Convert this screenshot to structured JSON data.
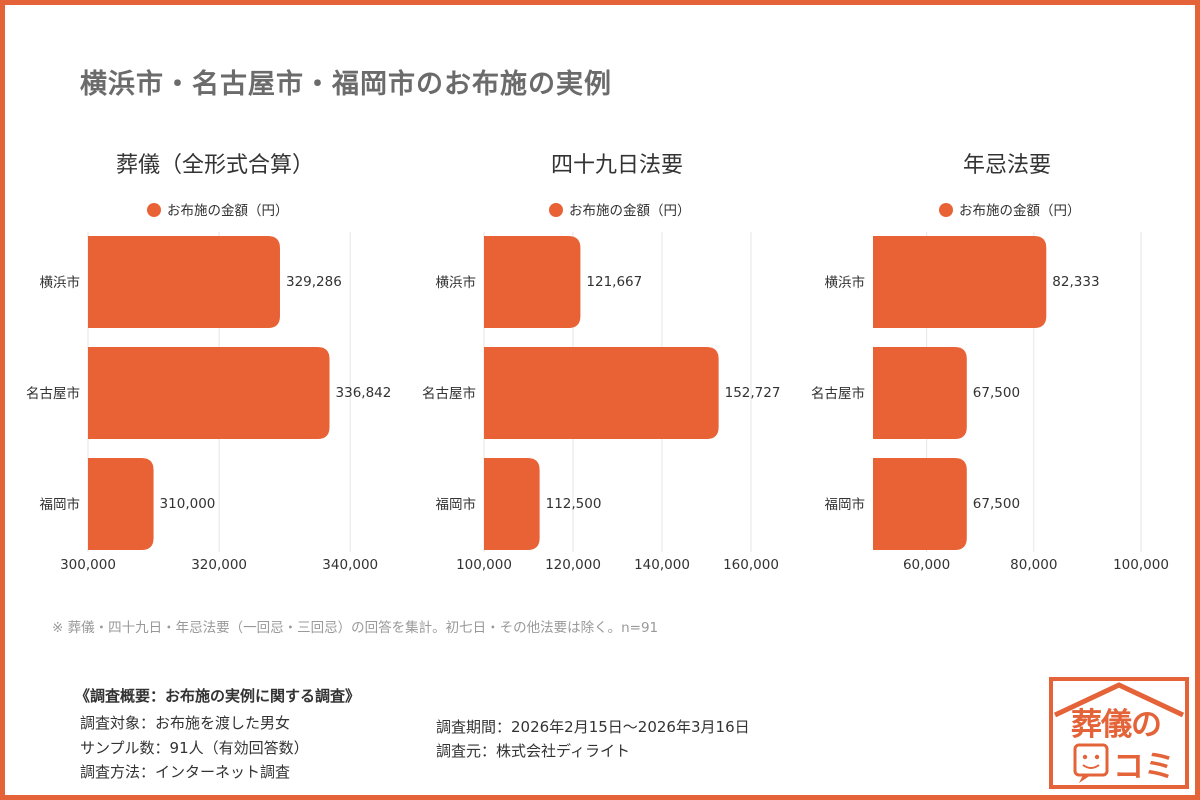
{
  "page": {
    "title": "横浜市・名古屋市・福岡市のお布施の実例",
    "note": "※ 葬儀・四十九日・年忌法要（一回忌・三回忌）の回答を集計。初七日・その他法要は除く。n=91"
  },
  "colors": {
    "accent": "#e46338",
    "bar": "#e86236",
    "grid": "#e6e6e6"
  },
  "chart_data": [
    {
      "type": "bar",
      "orientation": "horizontal",
      "title": "葬儀（全形式合算）",
      "legend": "お布施の金額（円）",
      "legend_position": "top",
      "categories": [
        "横浜市",
        "名古屋市",
        "福岡市"
      ],
      "values": [
        329286,
        336842,
        310000
      ],
      "value_labels": [
        "329,286",
        "336,842",
        "310,000"
      ],
      "xlim": [
        300000,
        345000
      ],
      "ticks": [
        300000,
        320000,
        340000
      ],
      "tick_labels": [
        "300,000",
        "320,000",
        "340,000"
      ],
      "grid": true
    },
    {
      "type": "bar",
      "orientation": "horizontal",
      "title": "四十九日法要",
      "legend": "お布施の金額（円）",
      "legend_position": "top",
      "categories": [
        "横浜市",
        "名古屋市",
        "福岡市"
      ],
      "values": [
        121667,
        152727,
        112500
      ],
      "value_labels": [
        "121,667",
        "152,727",
        "112,500"
      ],
      "xlim": [
        100000,
        160000
      ],
      "ticks": [
        100000,
        120000,
        140000,
        160000
      ],
      "tick_labels": [
        "100,000",
        "120,000",
        "140,000",
        "160,000"
      ],
      "grid": true
    },
    {
      "type": "bar",
      "orientation": "horizontal",
      "title": "年忌法要",
      "legend": "お布施の金額（円）",
      "legend_position": "top",
      "categories": [
        "横浜市",
        "名古屋市",
        "福岡市"
      ],
      "values": [
        82333,
        67500,
        67500
      ],
      "value_labels": [
        "82,333",
        "67,500",
        "67,500"
      ],
      "xlim": [
        50000,
        100000
      ],
      "ticks": [
        60000,
        80000,
        100000
      ],
      "tick_labels": [
        "60,000",
        "80,000",
        "100,000"
      ],
      "grid": true
    }
  ],
  "survey": {
    "heading": "《調査概要：お布施の実例に関する調査》",
    "target": "調査対象：お布施を渡した男女",
    "sample": "サンプル数：91人（有効回答数）",
    "method": "調査方法：インターネット調査",
    "period": "調査期間：2026年2月15日〜2026年3月16日",
    "source": "調査元：株式会社ディライト"
  },
  "logo": {
    "line1": "葬儀の",
    "line2": "コミ"
  }
}
